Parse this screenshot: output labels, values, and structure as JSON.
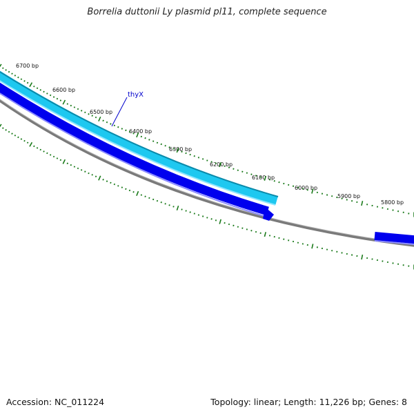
{
  "title": "Borrelia duttonii Ly plasmid pl11, complete sequence",
  "accession": "Accession: NC_011224",
  "summary": "Topology: linear; Length: 11,226 bp; Genes: 8",
  "colors": {
    "tick": "#1a7a1a",
    "backbone": "#7a7a7a",
    "gene_forward_light": "#1ec8f0",
    "gene_forward_edge": "#0a8aaa",
    "gene_blue": "#0000ee",
    "label": "#0000cc"
  },
  "chart_data": {
    "type": "circular-genome-map",
    "tick_labels": [
      "6700 bp",
      "6600 bp",
      "6500 bp",
      "6400 bp",
      "6300 bp",
      "6200 bp",
      "6100 bp",
      "6000 bp",
      "5900 bp",
      "5800 bp"
    ],
    "genes": [
      {
        "label": "thyX",
        "strand": "forward"
      }
    ]
  }
}
